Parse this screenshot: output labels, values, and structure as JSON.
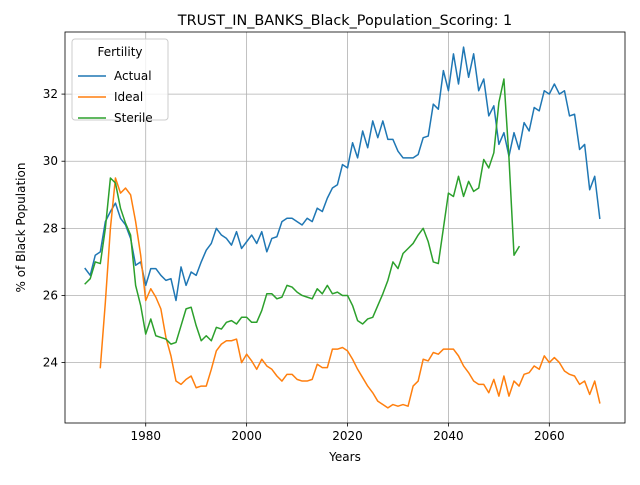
{
  "chart_data": {
    "type": "line",
    "title": "TRUST_IN_BANKS_Black_Population_Scoring: 1",
    "xlabel": "Years",
    "ylabel": "% of Black Population",
    "xlim": [
      1964,
      2075
    ],
    "ylim": [
      22.2,
      33.85
    ],
    "xticks": [
      1980,
      2000,
      2020,
      2040,
      2060
    ],
    "yticks": [
      24,
      26,
      28,
      30,
      32
    ],
    "grid": true,
    "legend": {
      "title": "Fertility",
      "position": "top-left"
    },
    "series": [
      {
        "name": "Actual",
        "color": "#1f77b4",
        "x": [
          1968,
          1969,
          1970,
          1971,
          1972,
          1973,
          1974,
          1975,
          1976,
          1977,
          1978,
          1979,
          1980,
          1981,
          1982,
          1983,
          1984,
          1985,
          1986,
          1987,
          1988,
          1989,
          1990,
          1991,
          1992,
          1993,
          1994,
          1995,
          1996,
          1997,
          1998,
          1999,
          2000,
          2001,
          2002,
          2003,
          2004,
          2005,
          2006,
          2007,
          2008,
          2009,
          2010,
          2011,
          2012,
          2013,
          2014,
          2015,
          2016,
          2017,
          2018,
          2019,
          2020,
          2021,
          2022,
          2023,
          2024,
          2025,
          2026,
          2027,
          2028,
          2029,
          2030,
          2031,
          2032,
          2033,
          2034,
          2035,
          2036,
          2037,
          2038,
          2039,
          2040,
          2041,
          2042,
          2043,
          2044,
          2045,
          2046,
          2047,
          2048,
          2049,
          2050,
          2051,
          2052,
          2053,
          2054,
          2055,
          2056,
          2057,
          2058,
          2059,
          2060,
          2061,
          2062,
          2063,
          2064,
          2065,
          2066,
          2067,
          2068,
          2069,
          2070
        ],
        "values": [
          26.8,
          26.6,
          27.2,
          27.3,
          28.2,
          28.5,
          28.75,
          28.3,
          28.1,
          27.7,
          26.9,
          27.0,
          26.3,
          26.8,
          26.8,
          26.6,
          26.45,
          26.5,
          25.85,
          26.85,
          26.3,
          26.7,
          26.6,
          27.0,
          27.35,
          27.55,
          28.0,
          27.8,
          27.7,
          27.5,
          27.9,
          27.4,
          27.6,
          27.8,
          27.55,
          27.9,
          27.3,
          27.7,
          27.75,
          28.2,
          28.3,
          28.3,
          28.2,
          28.1,
          28.3,
          28.2,
          28.6,
          28.5,
          28.9,
          29.2,
          29.3,
          29.9,
          29.8,
          30.55,
          30.1,
          30.9,
          30.4,
          31.2,
          30.7,
          31.2,
          30.65,
          30.65,
          30.3,
          30.1,
          30.1,
          30.1,
          30.2,
          30.7,
          30.75,
          31.7,
          31.55,
          32.7,
          32.1,
          33.2,
          32.3,
          33.4,
          32.5,
          33.2,
          32.1,
          32.45,
          31.35,
          31.65,
          30.5,
          30.85,
          30.15,
          30.85,
          30.35,
          31.15,
          30.9,
          31.6,
          31.5,
          32.1,
          32.0,
          32.3,
          32.0,
          32.1,
          31.35,
          31.4,
          30.35,
          30.5,
          29.15,
          29.55,
          28.3
        ]
      },
      {
        "name": "Ideal",
        "color": "#ff7f0e",
        "x": [
          1971,
          1972,
          1973,
          1974,
          1975,
          1976,
          1977,
          1978,
          1979,
          1980,
          1981,
          1982,
          1983,
          1984,
          1985,
          1986,
          1987,
          1988,
          1989,
          1990,
          1991,
          1992,
          1993,
          1994,
          1995,
          1996,
          1997,
          1998,
          1999,
          2000,
          2001,
          2002,
          2003,
          2004,
          2005,
          2006,
          2007,
          2008,
          2009,
          2010,
          2011,
          2012,
          2013,
          2014,
          2015,
          2016,
          2017,
          2018,
          2019,
          2020,
          2021,
          2022,
          2023,
          2024,
          2025,
          2026,
          2027,
          2028,
          2029,
          2030,
          2031,
          2032,
          2033,
          2034,
          2035,
          2036,
          2037,
          2038,
          2039,
          2040,
          2041,
          2042,
          2043,
          2044,
          2045,
          2046,
          2047,
          2048,
          2049,
          2050,
          2051,
          2052,
          2053,
          2054,
          2055,
          2056,
          2057,
          2058,
          2059,
          2060,
          2061,
          2062,
          2063,
          2064,
          2065,
          2066,
          2067,
          2068,
          2069,
          2070
        ],
        "values": [
          23.85,
          25.8,
          28.0,
          29.5,
          29.05,
          29.2,
          29.0,
          28.2,
          27.2,
          25.85,
          26.2,
          25.95,
          25.6,
          24.75,
          24.2,
          23.45,
          23.35,
          23.5,
          23.6,
          23.25,
          23.3,
          23.3,
          23.8,
          24.35,
          24.55,
          24.65,
          24.65,
          24.7,
          24.0,
          24.25,
          24.05,
          23.8,
          24.1,
          23.9,
          23.8,
          23.6,
          23.45,
          23.65,
          23.65,
          23.5,
          23.45,
          23.45,
          23.5,
          23.95,
          23.85,
          23.85,
          24.4,
          24.4,
          24.45,
          24.35,
          24.1,
          23.8,
          23.55,
          23.3,
          23.1,
          22.85,
          22.75,
          22.65,
          22.75,
          22.7,
          22.75,
          22.7,
          23.3,
          23.45,
          24.1,
          24.05,
          24.3,
          24.25,
          24.4,
          24.4,
          24.4,
          24.2,
          23.9,
          23.7,
          23.45,
          23.35,
          23.35,
          23.1,
          23.5,
          23.0,
          23.6,
          23.0,
          23.45,
          23.3,
          23.65,
          23.7,
          23.9,
          23.8,
          24.2,
          24.0,
          24.15,
          24.0,
          23.75,
          23.65,
          23.6,
          23.35,
          23.45,
          23.05,
          23.45,
          22.8
        ]
      },
      {
        "name": "Sterile",
        "color": "#2ca02c",
        "x": [
          1968,
          1969,
          1970,
          1971,
          1972,
          1973,
          1974,
          1975,
          1976,
          1977,
          1978,
          1979,
          1980,
          1981,
          1982,
          1983,
          1984,
          1985,
          1986,
          1987,
          1988,
          1989,
          1990,
          1991,
          1992,
          1993,
          1994,
          1995,
          1996,
          1997,
          1998,
          1999,
          2000,
          2001,
          2002,
          2003,
          2004,
          2005,
          2006,
          2007,
          2008,
          2009,
          2010,
          2011,
          2012,
          2013,
          2014,
          2015,
          2016,
          2017,
          2018,
          2019,
          2020,
          2021,
          2022,
          2023,
          2024,
          2025,
          2026,
          2027,
          2028,
          2029,
          2030,
          2031,
          2032,
          2033,
          2034,
          2035,
          2036,
          2037,
          2038,
          2039,
          2040,
          2041,
          2042,
          2043,
          2044,
          2045,
          2046,
          2047,
          2048,
          2049,
          2050,
          2051,
          2052,
          2053,
          2054
        ],
        "values": [
          26.35,
          26.5,
          27.0,
          26.95,
          28.0,
          29.5,
          29.35,
          28.6,
          28.15,
          27.8,
          26.3,
          25.7,
          24.85,
          25.3,
          24.8,
          24.75,
          24.7,
          24.55,
          24.6,
          25.1,
          25.6,
          25.65,
          25.1,
          24.65,
          24.8,
          24.65,
          25.05,
          25.0,
          25.2,
          25.25,
          25.15,
          25.35,
          25.35,
          25.2,
          25.2,
          25.55,
          26.05,
          26.05,
          25.9,
          25.95,
          26.3,
          26.25,
          26.1,
          26.0,
          25.95,
          25.9,
          26.2,
          26.05,
          26.3,
          26.05,
          26.1,
          26.0,
          26.0,
          25.7,
          25.25,
          25.15,
          25.3,
          25.35,
          25.7,
          26.05,
          26.45,
          27.0,
          26.8,
          27.25,
          27.4,
          27.55,
          27.8,
          28.0,
          27.6,
          27.0,
          26.95,
          28.0,
          29.05,
          28.95,
          29.55,
          28.95,
          29.4,
          29.1,
          29.2,
          30.05,
          29.8,
          30.25,
          31.75,
          32.45,
          30.1,
          27.2,
          27.45
        ]
      }
    ]
  }
}
